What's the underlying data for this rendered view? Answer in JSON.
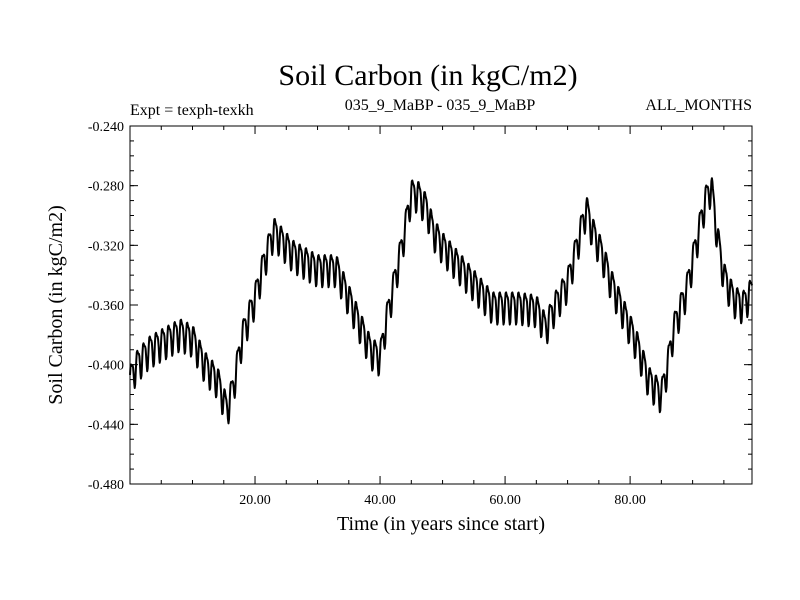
{
  "chart_data": {
    "type": "line",
    "title": "Soil Carbon (in kgC/m2)",
    "header_left": "Expt = texph-texkh",
    "header_center": "035_9_MaBP - 035_9_MaBP",
    "header_right": "ALL_MONTHS",
    "xlabel": "Time (in years since start)",
    "ylabel": "Soil Carbon (in kgC/m2)",
    "xlim": [
      0.0,
      99.5
    ],
    "ylim": [
      -0.48,
      -0.24
    ],
    "x_ticks": [
      20,
      40,
      60,
      80
    ],
    "x_tick_labels": [
      "20.00",
      "40.00",
      "60.00",
      "80.00"
    ],
    "y_ticks": [
      -0.24,
      -0.28,
      -0.32,
      -0.36,
      -0.4,
      -0.44,
      -0.48
    ],
    "y_tick_labels": [
      "-0.240",
      "-0.280",
      "-0.320",
      "-0.360",
      "-0.400",
      "-0.440",
      "-0.480"
    ],
    "series": [
      {
        "name": "Soil Carbon",
        "color": "#000000",
        "seasonal_amplitude": 0.01,
        "x": [
          0,
          1,
          3,
          5,
          8,
          10,
          12,
          14,
          15.5,
          16.5,
          18,
          20,
          21.5,
          23,
          24,
          26,
          28,
          30,
          33,
          35,
          37,
          38.5,
          40,
          41,
          42,
          43.5,
          45,
          46,
          47.5,
          48.5,
          50,
          52,
          55,
          58,
          62,
          65,
          66.5,
          68,
          70,
          71.5,
          73,
          74,
          75.5,
          77,
          79,
          81,
          83,
          85,
          86,
          87,
          89,
          90.5,
          92,
          93,
          94,
          95,
          96.5,
          98,
          99.5
        ],
        "y": [
          -0.41,
          -0.4,
          -0.39,
          -0.385,
          -0.378,
          -0.382,
          -0.4,
          -0.41,
          -0.43,
          -0.415,
          -0.38,
          -0.355,
          -0.33,
          -0.31,
          -0.315,
          -0.325,
          -0.33,
          -0.335,
          -0.335,
          -0.355,
          -0.375,
          -0.39,
          -0.395,
          -0.37,
          -0.35,
          -0.32,
          -0.285,
          -0.285,
          -0.295,
          -0.31,
          -0.32,
          -0.33,
          -0.345,
          -0.36,
          -0.36,
          -0.362,
          -0.375,
          -0.36,
          -0.345,
          -0.32,
          -0.295,
          -0.31,
          -0.325,
          -0.345,
          -0.365,
          -0.385,
          -0.41,
          -0.42,
          -0.4,
          -0.375,
          -0.35,
          -0.32,
          -0.29,
          -0.28,
          -0.315,
          -0.34,
          -0.355,
          -0.36,
          -0.35
        ]
      }
    ]
  }
}
